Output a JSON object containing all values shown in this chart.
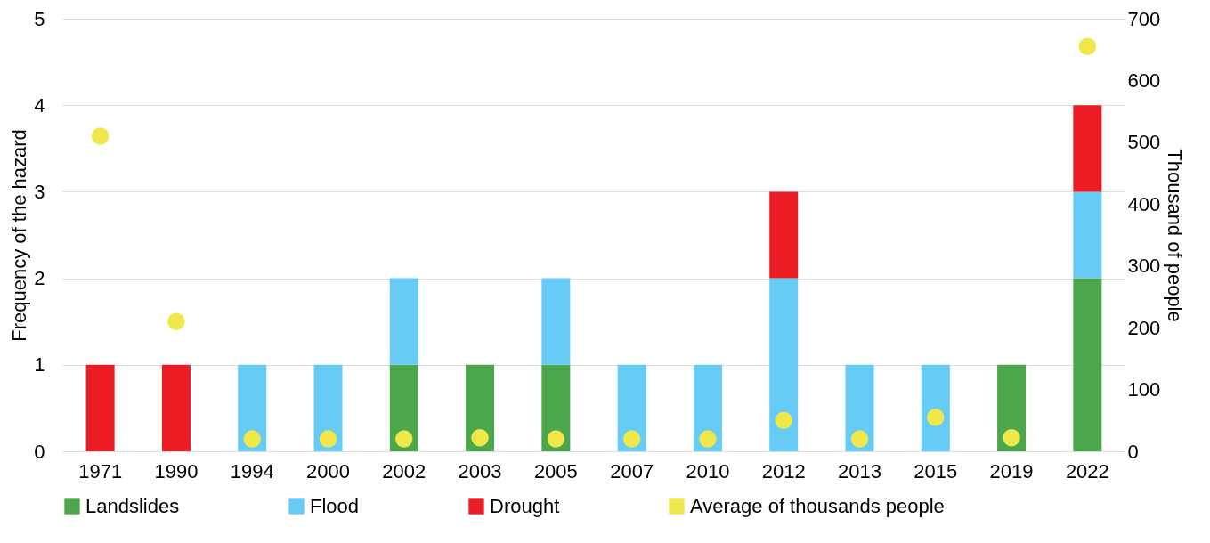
{
  "chart_data": {
    "type": "bar",
    "stacked": true,
    "categories": [
      "1971",
      "1990",
      "1994",
      "2000",
      "2002",
      "2003",
      "2005",
      "2007",
      "2010",
      "2012",
      "2013",
      "2015",
      "2019",
      "2022"
    ],
    "ylabel": "Frequency of the hazard",
    "y2label": "Thousand of people",
    "ylim": [
      0,
      5
    ],
    "yticks": [
      0,
      1,
      2,
      3,
      4,
      5
    ],
    "y2lim": [
      0,
      700
    ],
    "y2ticks": [
      0,
      100,
      200,
      300,
      400,
      500,
      600,
      700
    ],
    "grid": "y",
    "legend": "bottom",
    "series": [
      {
        "name": "Landslides",
        "color": "#4ca64c",
        "values": [
          0,
          0,
          0,
          0,
          1,
          1,
          1,
          0,
          0,
          0,
          0,
          0,
          1,
          2
        ]
      },
      {
        "name": "Flood",
        "color": "#66ccf5",
        "values": [
          0,
          0,
          1,
          1,
          1,
          0,
          1,
          1,
          1,
          2,
          1,
          1,
          0,
          1
        ]
      },
      {
        "name": "Drought",
        "color": "#ec1c24",
        "values": [
          1,
          1,
          0,
          0,
          0,
          0,
          0,
          0,
          0,
          1,
          0,
          0,
          0,
          1
        ]
      },
      {
        "name": "Average of thousands people",
        "type": "scatter",
        "axis": "y2",
        "marker": "circle",
        "color": "#f0e84a",
        "values": [
          510,
          210,
          20,
          20,
          20,
          22,
          20,
          20,
          20,
          50,
          20,
          55,
          22,
          655
        ]
      }
    ]
  }
}
